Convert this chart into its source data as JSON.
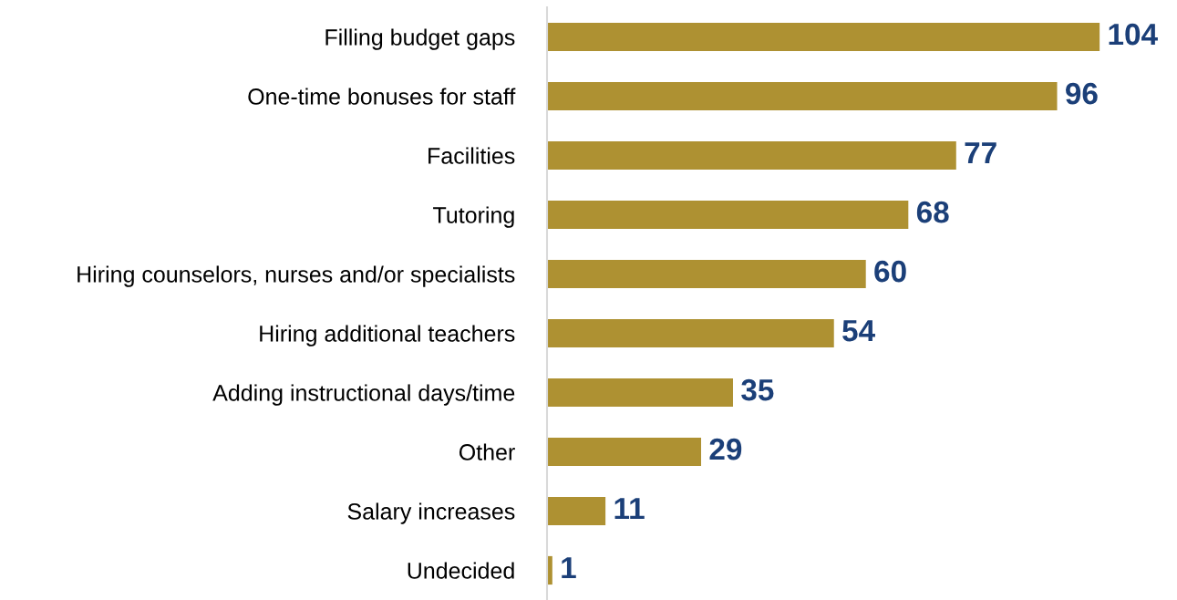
{
  "chart_data": {
    "type": "bar",
    "orientation": "horizontal",
    "categories": [
      "Filling budget gaps",
      "One-time bonuses for staff",
      "Facilities",
      "Tutoring",
      "Hiring counselors, nurses and/or specialists",
      "Hiring additional teachers",
      "Adding instructional days/time",
      "Other",
      "Salary increases",
      "Undecided"
    ],
    "values": [
      104,
      96,
      77,
      68,
      60,
      54,
      35,
      29,
      11,
      1
    ],
    "color": "#ae9132",
    "data_labels": true,
    "grid": false,
    "legend": false
  }
}
